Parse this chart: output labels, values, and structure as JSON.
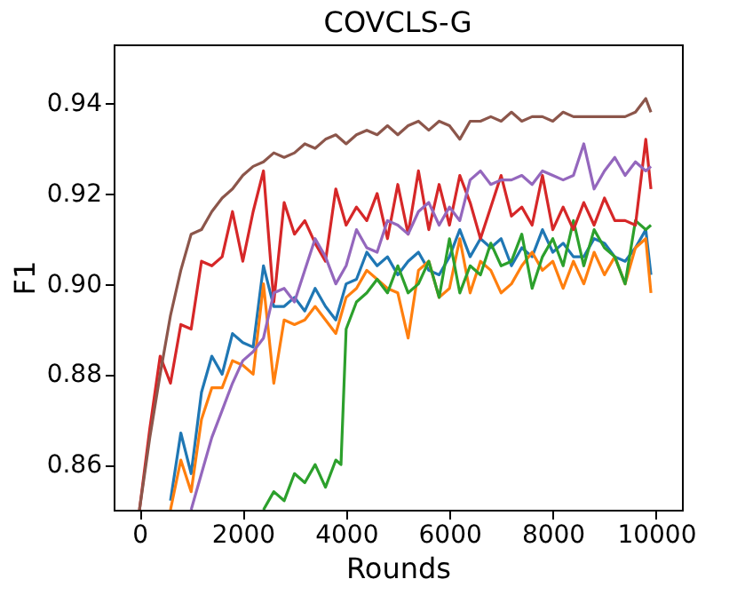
{
  "chart_data": {
    "type": "line",
    "title": "COVCLS-G",
    "xlabel": "Rounds",
    "ylabel": "F1",
    "xlim": [
      -500,
      10500
    ],
    "xticks": [
      0,
      2000,
      4000,
      6000,
      8000,
      10000
    ],
    "ylim": [
      0.85,
      0.953
    ],
    "yticks": [
      0.86,
      0.88,
      {
        "value": 0.9,
        "label": "0.90"
      },
      0.92,
      0.94
    ],
    "grid": false,
    "legend": false,
    "marker": "none",
    "line_style": "solid",
    "series": [
      {
        "color": "#1f77b4",
        "x": [
          600,
          800,
          1000,
          1200,
          1400,
          1600,
          1800,
          2000,
          2200,
          2400,
          2600,
          2800,
          3000,
          3200,
          3400,
          3600,
          3800,
          4000,
          4200,
          4400,
          4600,
          4800,
          5000,
          5200,
          5400,
          5600,
          5800,
          6000,
          6200,
          6400,
          6600,
          6800,
          7000,
          7200,
          7400,
          7600,
          7800,
          8000,
          8200,
          8400,
          8600,
          8800,
          9000,
          9200,
          9400,
          9600,
          9800,
          9900
        ],
        "values": [
          0.852,
          0.867,
          0.858,
          0.876,
          0.884,
          0.88,
          0.889,
          0.887,
          0.886,
          0.904,
          0.895,
          0.895,
          0.897,
          0.894,
          0.899,
          0.895,
          0.892,
          0.9,
          0.901,
          0.907,
          0.904,
          0.906,
          0.902,
          0.905,
          0.907,
          0.903,
          0.902,
          0.906,
          0.912,
          0.906,
          0.91,
          0.908,
          0.91,
          0.904,
          0.908,
          0.906,
          0.912,
          0.907,
          0.909,
          0.906,
          0.906,
          0.91,
          0.909,
          0.906,
          0.905,
          0.908,
          0.912,
          0.902
        ]
      },
      {
        "color": "#ff7f0e",
        "x": [
          600,
          800,
          1000,
          1200,
          1400,
          1600,
          1800,
          2000,
          2200,
          2400,
          2600,
          2800,
          3000,
          3200,
          3400,
          3600,
          3800,
          4000,
          4200,
          4400,
          4600,
          4800,
          5000,
          5200,
          5400,
          5600,
          5800,
          6000,
          6200,
          6400,
          6600,
          6800,
          7000,
          7200,
          7400,
          7600,
          7800,
          8000,
          8200,
          8400,
          8600,
          8800,
          9000,
          9200,
          9400,
          9600,
          9800,
          9900
        ],
        "values": [
          0.85,
          0.861,
          0.854,
          0.87,
          0.877,
          0.877,
          0.883,
          0.882,
          0.88,
          0.9,
          0.878,
          0.892,
          0.891,
          0.892,
          0.895,
          0.892,
          0.889,
          0.897,
          0.899,
          0.903,
          0.901,
          0.899,
          0.898,
          0.888,
          0.903,
          0.905,
          0.897,
          0.899,
          0.91,
          0.898,
          0.905,
          0.903,
          0.898,
          0.9,
          0.904,
          0.907,
          0.903,
          0.905,
          0.899,
          0.905,
          0.9,
          0.907,
          0.902,
          0.906,
          0.9,
          0.908,
          0.91,
          0.898
        ]
      },
      {
        "color": "#2ca02c",
        "x": [
          2400,
          2600,
          2800,
          3000,
          3200,
          3400,
          3600,
          3800,
          3900,
          4000,
          4200,
          4400,
          4600,
          4800,
          5000,
          5200,
          5400,
          5600,
          5800,
          6000,
          6200,
          6400,
          6600,
          6800,
          7000,
          7200,
          7400,
          7600,
          7800,
          8000,
          8200,
          8400,
          8600,
          8800,
          9000,
          9200,
          9400,
          9600,
          9800,
          9900
        ],
        "values": [
          0.85,
          0.854,
          0.852,
          0.858,
          0.856,
          0.86,
          0.855,
          0.861,
          0.86,
          0.89,
          0.896,
          0.898,
          0.901,
          0.898,
          0.904,
          0.898,
          0.9,
          0.905,
          0.897,
          0.91,
          0.898,
          0.904,
          0.902,
          0.909,
          0.904,
          0.905,
          0.911,
          0.899,
          0.906,
          0.91,
          0.904,
          0.914,
          0.904,
          0.912,
          0.908,
          0.906,
          0.9,
          0.914,
          0.912,
          0.913
        ]
      },
      {
        "color": "#d62728",
        "x": [
          0,
          200,
          400,
          600,
          800,
          1000,
          1200,
          1400,
          1600,
          1800,
          2000,
          2200,
          2400,
          2600,
          2800,
          3000,
          3200,
          3400,
          3600,
          3800,
          4000,
          4200,
          4400,
          4600,
          4800,
          5000,
          5200,
          5400,
          5600,
          5800,
          6000,
          6200,
          6400,
          6600,
          6800,
          7000,
          7200,
          7400,
          7600,
          7800,
          8000,
          8200,
          8400,
          8600,
          8800,
          9000,
          9200,
          9400,
          9600,
          9800,
          9900
        ],
        "values": [
          0.85,
          0.868,
          0.884,
          0.878,
          0.891,
          0.89,
          0.905,
          0.904,
          0.906,
          0.916,
          0.905,
          0.916,
          0.925,
          0.896,
          0.918,
          0.911,
          0.914,
          0.909,
          0.905,
          0.921,
          0.913,
          0.917,
          0.914,
          0.92,
          0.91,
          0.922,
          0.911,
          0.925,
          0.912,
          0.922,
          0.913,
          0.924,
          0.918,
          0.91,
          0.917,
          0.924,
          0.915,
          0.917,
          0.913,
          0.924,
          0.912,
          0.917,
          0.912,
          0.918,
          0.913,
          0.919,
          0.914,
          0.914,
          0.913,
          0.932,
          0.921
        ]
      },
      {
        "color": "#9467bd",
        "x": [
          1000,
          1200,
          1400,
          1600,
          1800,
          2000,
          2200,
          2400,
          2600,
          2800,
          3000,
          3200,
          3400,
          3600,
          3800,
          4000,
          4200,
          4400,
          4600,
          4800,
          5000,
          5200,
          5400,
          5600,
          5800,
          6000,
          6200,
          6400,
          6600,
          6800,
          7000,
          7200,
          7400,
          7600,
          7800,
          8000,
          8200,
          8400,
          8600,
          8800,
          9000,
          9200,
          9400,
          9600,
          9800,
          9900
        ],
        "values": [
          0.85,
          0.858,
          0.866,
          0.872,
          0.878,
          0.883,
          0.885,
          0.888,
          0.898,
          0.899,
          0.896,
          0.903,
          0.91,
          0.906,
          0.9,
          0.904,
          0.912,
          0.908,
          0.907,
          0.914,
          0.913,
          0.911,
          0.916,
          0.918,
          0.913,
          0.917,
          0.914,
          0.923,
          0.925,
          0.922,
          0.923,
          0.923,
          0.924,
          0.922,
          0.925,
          0.924,
          0.923,
          0.924,
          0.931,
          0.921,
          0.925,
          0.928,
          0.924,
          0.927,
          0.925,
          0.926
        ]
      },
      {
        "color": "#8c564b",
        "x": [
          0,
          200,
          400,
          600,
          800,
          1000,
          1200,
          1400,
          1600,
          1800,
          2000,
          2200,
          2400,
          2600,
          2800,
          3000,
          3200,
          3400,
          3600,
          3800,
          4000,
          4200,
          4400,
          4600,
          4800,
          5000,
          5200,
          5400,
          5600,
          5800,
          6000,
          6200,
          6400,
          6600,
          6800,
          7000,
          7200,
          7400,
          7600,
          7800,
          8000,
          8200,
          8400,
          8600,
          8800,
          9000,
          9200,
          9400,
          9600,
          9800,
          9900
        ],
        "values": [
          0.85,
          0.866,
          0.88,
          0.893,
          0.903,
          0.911,
          0.912,
          0.916,
          0.919,
          0.921,
          0.924,
          0.926,
          0.927,
          0.929,
          0.928,
          0.929,
          0.931,
          0.93,
          0.932,
          0.933,
          0.931,
          0.933,
          0.934,
          0.933,
          0.935,
          0.933,
          0.935,
          0.936,
          0.934,
          0.936,
          0.935,
          0.932,
          0.936,
          0.936,
          0.937,
          0.936,
          0.938,
          0.936,
          0.937,
          0.937,
          0.936,
          0.938,
          0.937,
          0.937,
          0.937,
          0.937,
          0.937,
          0.937,
          0.938,
          0.941,
          0.938
        ]
      }
    ]
  }
}
